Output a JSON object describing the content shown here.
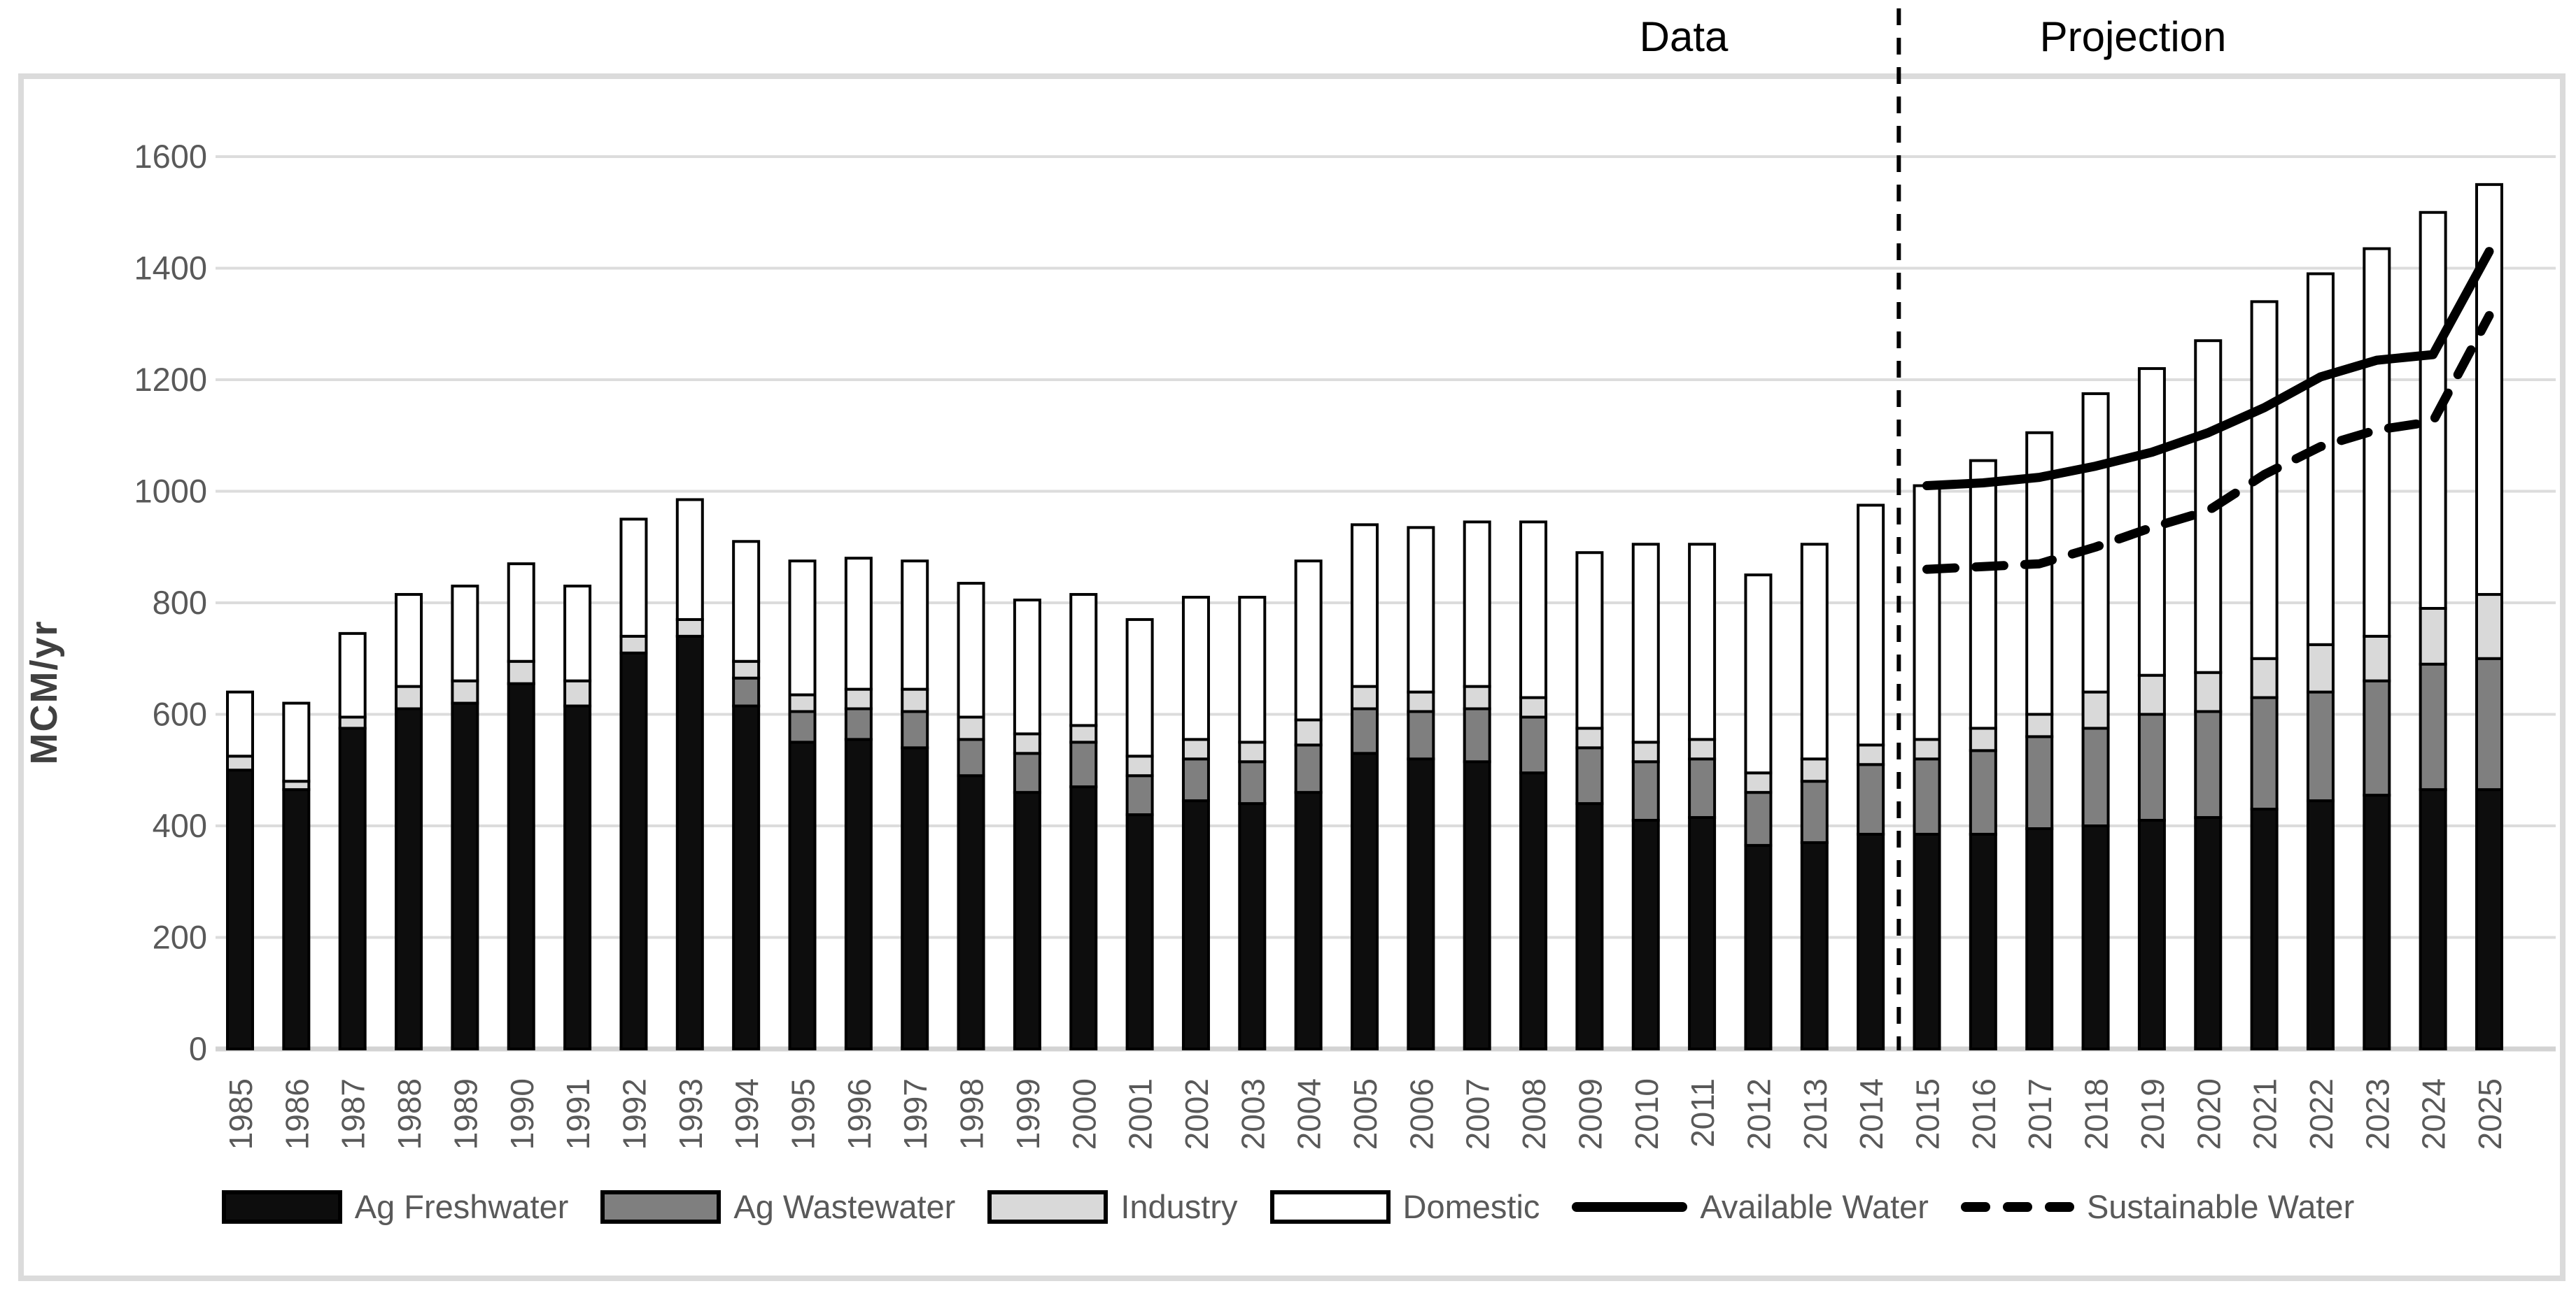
{
  "header": {
    "annotations": {
      "data_label": "Data",
      "projection_label": "Projection"
    }
  },
  "chart_data": {
    "type": "bar",
    "stacked": true,
    "title": "",
    "xlabel": "",
    "ylabel": "MCM/yr",
    "ylim": [
      0,
      1600
    ],
    "ytick_step": 200,
    "grid": true,
    "legend_position": "bottom",
    "divider_after_category": "2014",
    "annotations": {
      "data_label": "Data",
      "projection_label": "Projection"
    },
    "categories": [
      "1985",
      "1986",
      "1987",
      "1988",
      "1989",
      "1990",
      "1991",
      "1992",
      "1993",
      "1994",
      "1995",
      "1996",
      "1997",
      "1998",
      "1999",
      "2000",
      "2001",
      "2002",
      "2003",
      "2004",
      "2005",
      "2006",
      "2007",
      "2008",
      "2009",
      "2010",
      "2011",
      "2012",
      "2013",
      "2014",
      "2015",
      "2016",
      "2017",
      "2018",
      "2019",
      "2020",
      "2021",
      "2022",
      "2023",
      "2024",
      "2025"
    ],
    "series": [
      {
        "name": "Ag Freshwater",
        "type": "bar",
        "color": "#0d0d0d",
        "values": [
          500,
          465,
          575,
          610,
          620,
          655,
          615,
          710,
          740,
          615,
          550,
          555,
          540,
          490,
          460,
          470,
          420,
          445,
          440,
          460,
          530,
          520,
          515,
          495,
          440,
          410,
          415,
          365,
          370,
          385,
          385,
          385,
          395,
          400,
          410,
          415,
          430,
          445,
          455,
          465,
          465
        ]
      },
      {
        "name": "Ag Wastewater",
        "type": "bar",
        "color": "#7f7f7f",
        "values": [
          0,
          0,
          0,
          0,
          0,
          0,
          0,
          0,
          0,
          50,
          55,
          55,
          65,
          65,
          70,
          80,
          70,
          75,
          75,
          85,
          80,
          85,
          95,
          100,
          100,
          105,
          105,
          95,
          110,
          125,
          135,
          150,
          165,
          175,
          190,
          190,
          200,
          195,
          205,
          225,
          235
        ]
      },
      {
        "name": "Industry",
        "type": "bar",
        "color": "#d9d9d9",
        "values": [
          25,
          15,
          20,
          40,
          40,
          40,
          45,
          30,
          30,
          30,
          30,
          35,
          40,
          40,
          35,
          30,
          35,
          35,
          35,
          45,
          40,
          35,
          40,
          35,
          35,
          35,
          35,
          35,
          40,
          35,
          35,
          40,
          40,
          65,
          70,
          70,
          70,
          85,
          80,
          100,
          115
        ]
      },
      {
        "name": "Domestic",
        "type": "bar",
        "color": "#ffffff",
        "values": [
          115,
          140,
          150,
          165,
          170,
          175,
          170,
          210,
          215,
          215,
          240,
          235,
          230,
          240,
          240,
          235,
          245,
          255,
          260,
          285,
          290,
          295,
          295,
          315,
          315,
          355,
          350,
          355,
          385,
          430,
          455,
          480,
          505,
          535,
          550,
          595,
          640,
          665,
          695,
          710,
          735
        ]
      },
      {
        "name": "Available Water",
        "type": "line",
        "style": "solid",
        "color": "#000000",
        "values": [
          null,
          null,
          null,
          null,
          null,
          null,
          null,
          null,
          null,
          null,
          null,
          null,
          null,
          null,
          null,
          null,
          null,
          null,
          null,
          null,
          null,
          null,
          null,
          null,
          null,
          null,
          null,
          null,
          null,
          null,
          1010,
          1015,
          1025,
          1045,
          1070,
          1105,
          1150,
          1205,
          1235,
          1245,
          1430
        ]
      },
      {
        "name": "Sustainable Water",
        "type": "line",
        "style": "dashed",
        "color": "#000000",
        "values": [
          null,
          null,
          null,
          null,
          null,
          null,
          null,
          null,
          null,
          null,
          null,
          null,
          null,
          null,
          null,
          null,
          null,
          null,
          null,
          null,
          null,
          null,
          null,
          null,
          null,
          null,
          null,
          null,
          null,
          null,
          860,
          865,
          870,
          900,
          935,
          965,
          1030,
          1080,
          1110,
          1125,
          1315
        ]
      }
    ]
  },
  "colors": {
    "grid": "#dcdcdc",
    "frame": "#dbdbdb",
    "tick_text": "#595959",
    "axis_title_text": "#404040",
    "annotation_text": "#000000",
    "bar_border": "#000000",
    "line": "#000000"
  }
}
